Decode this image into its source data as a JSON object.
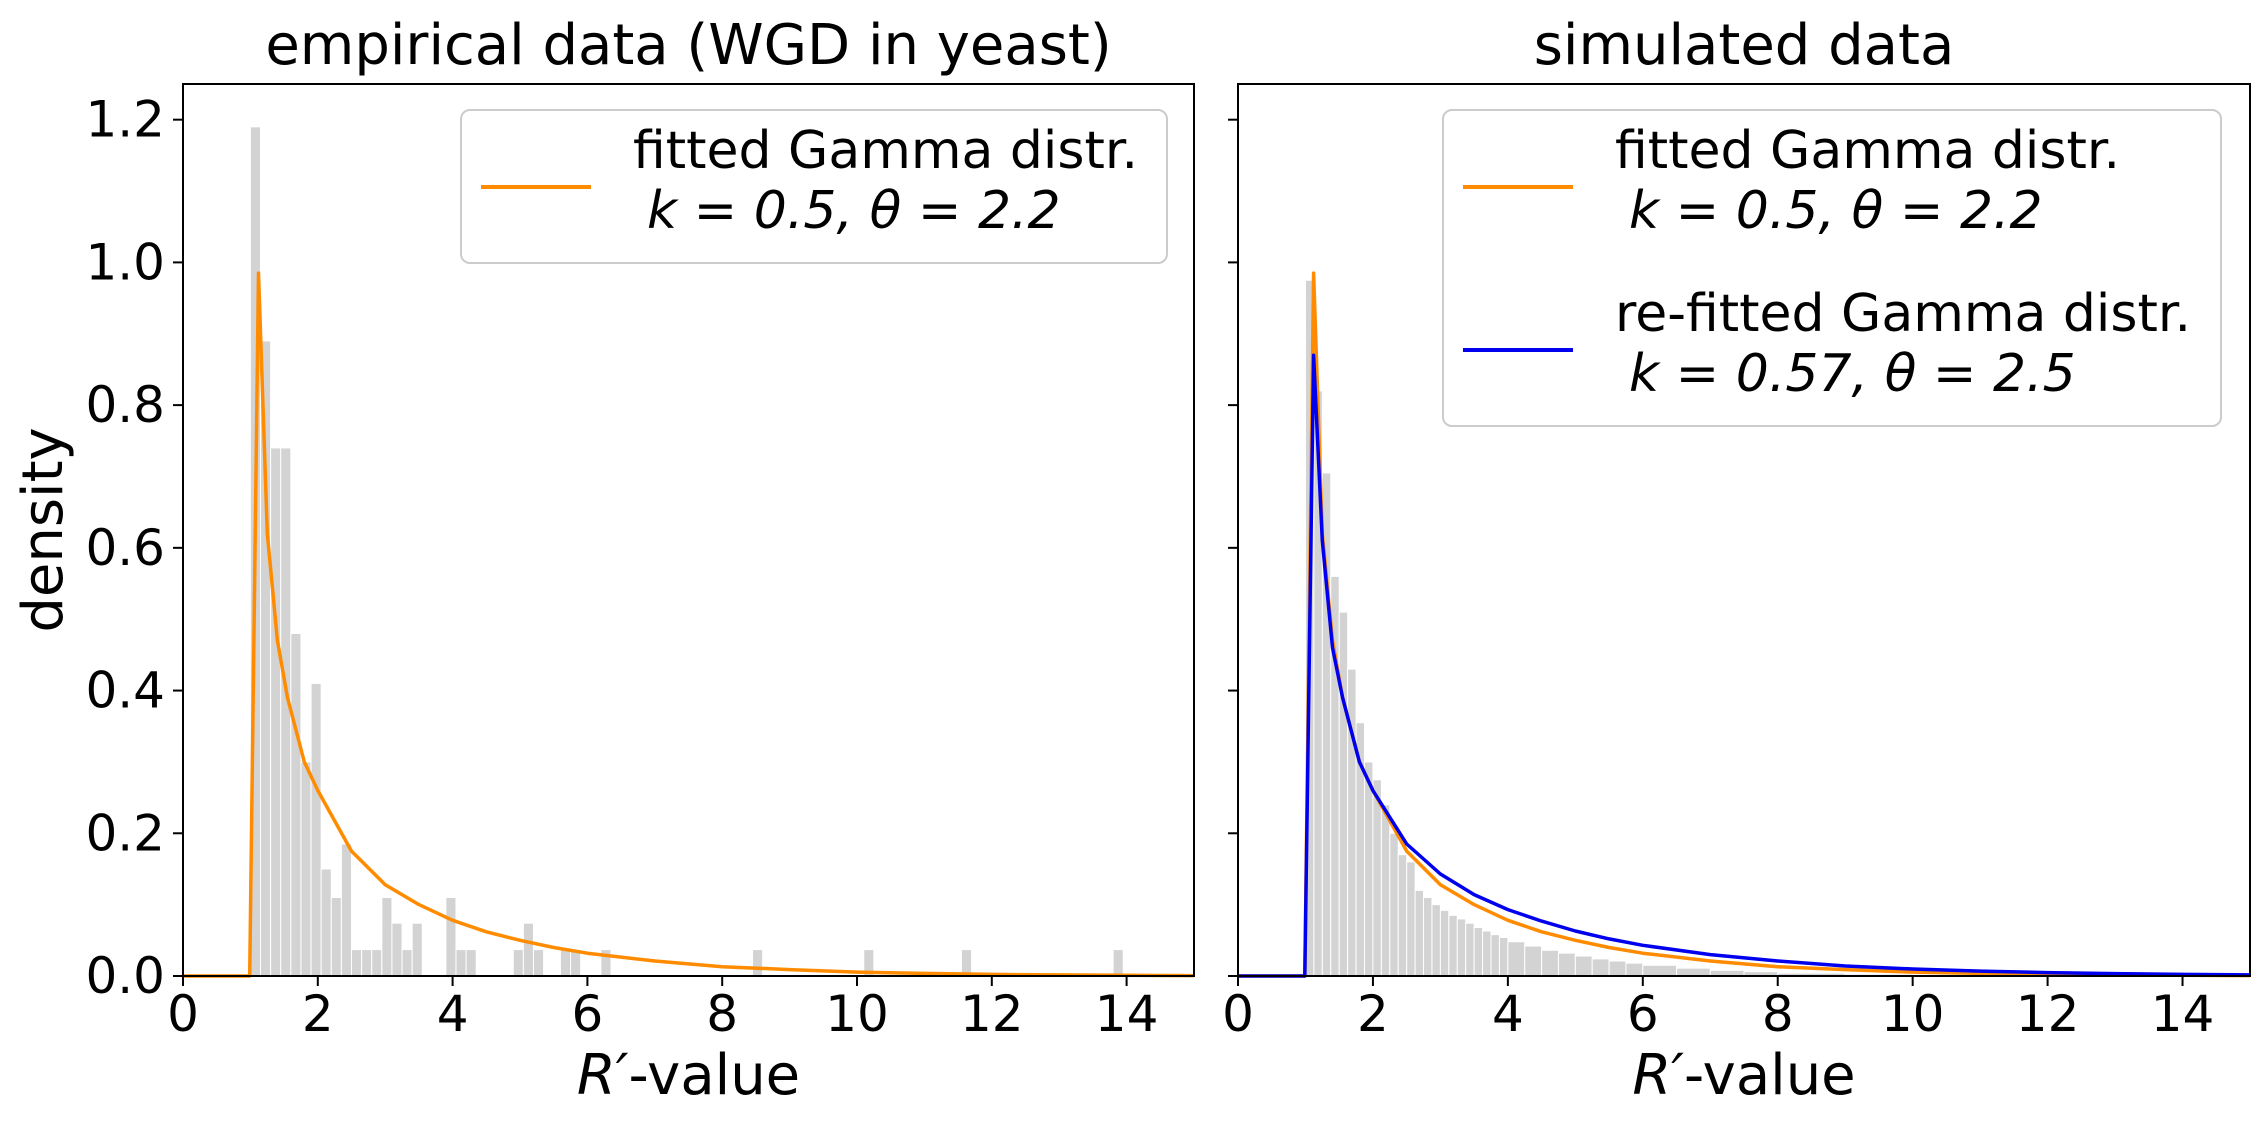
{
  "chart_data": [
    {
      "type": "histogram+line",
      "title": "empirical data (WGD in yeast)",
      "xlabel_symbol": "R′",
      "xlabel_suffix": "-value",
      "ylabel": "density",
      "xlim": [
        0,
        15
      ],
      "ylim": [
        0,
        1.25
      ],
      "xticks": [
        0,
        2,
        4,
        6,
        8,
        10,
        12,
        14
      ],
      "yticks": [
        0.0,
        0.2,
        0.4,
        0.6,
        0.8,
        1.0,
        1.2
      ],
      "ytick_labels": [
        "0.0",
        "0.2",
        "0.4",
        "0.6",
        "0.8",
        "1.0",
        "1.2"
      ],
      "bins": [
        {
          "x0": 1.0,
          "x1": 1.15,
          "value": 1.19
        },
        {
          "x0": 1.15,
          "x1": 1.3,
          "value": 0.89
        },
        {
          "x0": 1.3,
          "x1": 1.45,
          "value": 0.74
        },
        {
          "x0": 1.45,
          "x1": 1.6,
          "value": 0.74
        },
        {
          "x0": 1.6,
          "x1": 1.75,
          "value": 0.48
        },
        {
          "x0": 1.75,
          "x1": 1.9,
          "value": 0.3
        },
        {
          "x0": 1.9,
          "x1": 2.05,
          "value": 0.41
        },
        {
          "x0": 2.05,
          "x1": 2.2,
          "value": 0.15
        },
        {
          "x0": 2.2,
          "x1": 2.35,
          "value": 0.11
        },
        {
          "x0": 2.35,
          "x1": 2.5,
          "value": 0.185
        },
        {
          "x0": 2.5,
          "x1": 2.65,
          "value": 0.037
        },
        {
          "x0": 2.65,
          "x1": 2.8,
          "value": 0.037
        },
        {
          "x0": 2.8,
          "x1": 2.95,
          "value": 0.037
        },
        {
          "x0": 2.95,
          "x1": 3.1,
          "value": 0.11
        },
        {
          "x0": 3.1,
          "x1": 3.25,
          "value": 0.074
        },
        {
          "x0": 3.25,
          "x1": 3.4,
          "value": 0.037
        },
        {
          "x0": 3.4,
          "x1": 3.55,
          "value": 0.074
        },
        {
          "x0": 3.9,
          "x1": 4.05,
          "value": 0.11
        },
        {
          "x0": 4.05,
          "x1": 4.2,
          "value": 0.037
        },
        {
          "x0": 4.2,
          "x1": 4.35,
          "value": 0.037
        },
        {
          "x0": 4.9,
          "x1": 5.05,
          "value": 0.037
        },
        {
          "x0": 5.05,
          "x1": 5.2,
          "value": 0.074
        },
        {
          "x0": 5.2,
          "x1": 5.35,
          "value": 0.037
        },
        {
          "x0": 5.6,
          "x1": 5.75,
          "value": 0.037
        },
        {
          "x0": 5.75,
          "x1": 5.9,
          "value": 0.037
        },
        {
          "x0": 6.2,
          "x1": 6.35,
          "value": 0.037
        },
        {
          "x0": 8.45,
          "x1": 8.6,
          "value": 0.037
        },
        {
          "x0": 10.1,
          "x1": 10.25,
          "value": 0.037
        },
        {
          "x0": 11.55,
          "x1": 11.7,
          "value": 0.037
        },
        {
          "x0": 13.8,
          "x1": 13.95,
          "value": 0.037
        }
      ],
      "series": [
        {
          "name": "fitted Gamma distr.",
          "legend_line1": "fitted Gamma distr.",
          "legend_line2": "k = 0.5, θ = 2.2",
          "color": "#ff8c00",
          "loc": 1.0,
          "k": 0.5,
          "theta": 2.2,
          "curve": [
            [
              0,
              0
            ],
            [
              0.99,
              0
            ],
            [
              1.12,
              0.985
            ],
            [
              1.25,
              0.62
            ],
            [
              1.4,
              0.47
            ],
            [
              1.55,
              0.39
            ],
            [
              1.8,
              0.3
            ],
            [
              2.0,
              0.26
            ],
            [
              2.5,
              0.175
            ],
            [
              3.0,
              0.128
            ],
            [
              3.5,
              0.1
            ],
            [
              4.0,
              0.078
            ],
            [
              4.5,
              0.062
            ],
            [
              5.0,
              0.05
            ],
            [
              5.5,
              0.04
            ],
            [
              6.0,
              0.032
            ],
            [
              7.0,
              0.021
            ],
            [
              8.0,
              0.013
            ],
            [
              9.0,
              0.009
            ],
            [
              10.0,
              0.0055
            ],
            [
              11.0,
              0.0036
            ],
            [
              12.0,
              0.0023
            ],
            [
              13.0,
              0.0015
            ],
            [
              14.0,
              0.001
            ],
            [
              15.0,
              0.0006
            ]
          ]
        }
      ]
    },
    {
      "type": "histogram+line",
      "title": "simulated data",
      "xlabel_symbol": "R′",
      "xlabel_suffix": "-value",
      "ylabel": "",
      "xlim": [
        0,
        15
      ],
      "ylim": [
        0,
        1.25
      ],
      "xticks": [
        0,
        2,
        4,
        6,
        8,
        10,
        12,
        14
      ],
      "yticks": [
        0.0,
        0.2,
        0.4,
        0.6,
        0.8,
        1.0,
        1.2
      ],
      "ytick_labels": [],
      "bins": [
        {
          "x0": 1.0,
          "x1": 1.125,
          "value": 0.975
        },
        {
          "x0": 1.125,
          "x1": 1.25,
          "value": 0.82
        },
        {
          "x0": 1.25,
          "x1": 1.375,
          "value": 0.705
        },
        {
          "x0": 1.375,
          "x1": 1.5,
          "value": 0.56
        },
        {
          "x0": 1.5,
          "x1": 1.625,
          "value": 0.51
        },
        {
          "x0": 1.625,
          "x1": 1.75,
          "value": 0.43
        },
        {
          "x0": 1.75,
          "x1": 1.875,
          "value": 0.355
        },
        {
          "x0": 1.875,
          "x1": 2.0,
          "value": 0.3
        },
        {
          "x0": 2.0,
          "x1": 2.125,
          "value": 0.275
        },
        {
          "x0": 2.125,
          "x1": 2.25,
          "value": 0.24
        },
        {
          "x0": 2.25,
          "x1": 2.375,
          "value": 0.2
        },
        {
          "x0": 2.375,
          "x1": 2.5,
          "value": 0.17
        },
        {
          "x0": 2.5,
          "x1": 2.625,
          "value": 0.16
        },
        {
          "x0": 2.625,
          "x1": 2.75,
          "value": 0.12
        },
        {
          "x0": 2.75,
          "x1": 2.875,
          "value": 0.11
        },
        {
          "x0": 2.875,
          "x1": 3.0,
          "value": 0.1
        },
        {
          "x0": 3.0,
          "x1": 3.125,
          "value": 0.092
        },
        {
          "x0": 3.125,
          "x1": 3.25,
          "value": 0.085
        },
        {
          "x0": 3.25,
          "x1": 3.375,
          "value": 0.08
        },
        {
          "x0": 3.375,
          "x1": 3.5,
          "value": 0.074
        },
        {
          "x0": 3.5,
          "x1": 3.625,
          "value": 0.068
        },
        {
          "x0": 3.625,
          "x1": 3.75,
          "value": 0.063
        },
        {
          "x0": 3.75,
          "x1": 3.875,
          "value": 0.058
        },
        {
          "x0": 3.875,
          "x1": 4.0,
          "value": 0.054
        },
        {
          "x0": 4.0,
          "x1": 4.25,
          "value": 0.048
        },
        {
          "x0": 4.25,
          "x1": 4.5,
          "value": 0.042
        },
        {
          "x0": 4.5,
          "x1": 4.75,
          "value": 0.036
        },
        {
          "x0": 4.75,
          "x1": 5.0,
          "value": 0.032
        },
        {
          "x0": 5.0,
          "x1": 5.25,
          "value": 0.028
        },
        {
          "x0": 5.25,
          "x1": 5.5,
          "value": 0.024
        },
        {
          "x0": 5.5,
          "x1": 5.75,
          "value": 0.021
        },
        {
          "x0": 5.75,
          "x1": 6.0,
          "value": 0.018
        },
        {
          "x0": 6.0,
          "x1": 6.5,
          "value": 0.015
        },
        {
          "x0": 6.5,
          "x1": 7.0,
          "value": 0.011
        },
        {
          "x0": 7.0,
          "x1": 7.5,
          "value": 0.008
        },
        {
          "x0": 7.5,
          "x1": 8.0,
          "value": 0.006
        },
        {
          "x0": 8.0,
          "x1": 9.0,
          "value": 0.004
        },
        {
          "x0": 9.0,
          "x1": 10.0,
          "value": 0.0025
        },
        {
          "x0": 10.0,
          "x1": 12.0,
          "value": 0.0012
        },
        {
          "x0": 12.0,
          "x1": 15.0,
          "value": 0.0005
        }
      ],
      "series": [
        {
          "name": "fitted Gamma distr.",
          "legend_line1": "fitted Gamma distr.",
          "legend_line2": "k = 0.5, θ = 2.2",
          "color": "#ff8c00",
          "loc": 1.0,
          "k": 0.5,
          "theta": 2.2,
          "curve": [
            [
              0,
              0
            ],
            [
              0.99,
              0
            ],
            [
              1.12,
              0.985
            ],
            [
              1.25,
              0.62
            ],
            [
              1.4,
              0.47
            ],
            [
              1.55,
              0.39
            ],
            [
              1.8,
              0.3
            ],
            [
              2.0,
              0.26
            ],
            [
              2.5,
              0.175
            ],
            [
              3.0,
              0.128
            ],
            [
              3.5,
              0.1
            ],
            [
              4.0,
              0.078
            ],
            [
              4.5,
              0.062
            ],
            [
              5.0,
              0.05
            ],
            [
              5.5,
              0.04
            ],
            [
              6.0,
              0.032
            ],
            [
              7.0,
              0.021
            ],
            [
              8.0,
              0.013
            ],
            [
              9.0,
              0.009
            ],
            [
              10.0,
              0.0055
            ],
            [
              11.0,
              0.0036
            ],
            [
              12.0,
              0.0023
            ],
            [
              13.0,
              0.0015
            ],
            [
              14.0,
              0.001
            ],
            [
              15.0,
              0.0006
            ]
          ]
        },
        {
          "name": "re-fitted Gamma distr.",
          "legend_line1": "re-fitted Gamma distr.",
          "legend_line2": "k = 0.57, θ = 2.5",
          "color": "#0000ee",
          "loc": 1.0,
          "k": 0.57,
          "theta": 2.5,
          "curve": [
            [
              0,
              0
            ],
            [
              0.99,
              0
            ],
            [
              1.12,
              0.87
            ],
            [
              1.25,
              0.61
            ],
            [
              1.4,
              0.46
            ],
            [
              1.55,
              0.39
            ],
            [
              1.8,
              0.3
            ],
            [
              2.0,
              0.26
            ],
            [
              2.5,
              0.185
            ],
            [
              3.0,
              0.143
            ],
            [
              3.5,
              0.114
            ],
            [
              4.0,
              0.093
            ],
            [
              4.5,
              0.077
            ],
            [
              5.0,
              0.063
            ],
            [
              5.5,
              0.052
            ],
            [
              6.0,
              0.043
            ],
            [
              7.0,
              0.03
            ],
            [
              8.0,
              0.021
            ],
            [
              9.0,
              0.014
            ],
            [
              10.0,
              0.0098
            ],
            [
              11.0,
              0.0068
            ],
            [
              12.0,
              0.0047
            ],
            [
              13.0,
              0.0033
            ],
            [
              14.0,
              0.0023
            ],
            [
              15.0,
              0.0016
            ]
          ]
        }
      ]
    }
  ]
}
